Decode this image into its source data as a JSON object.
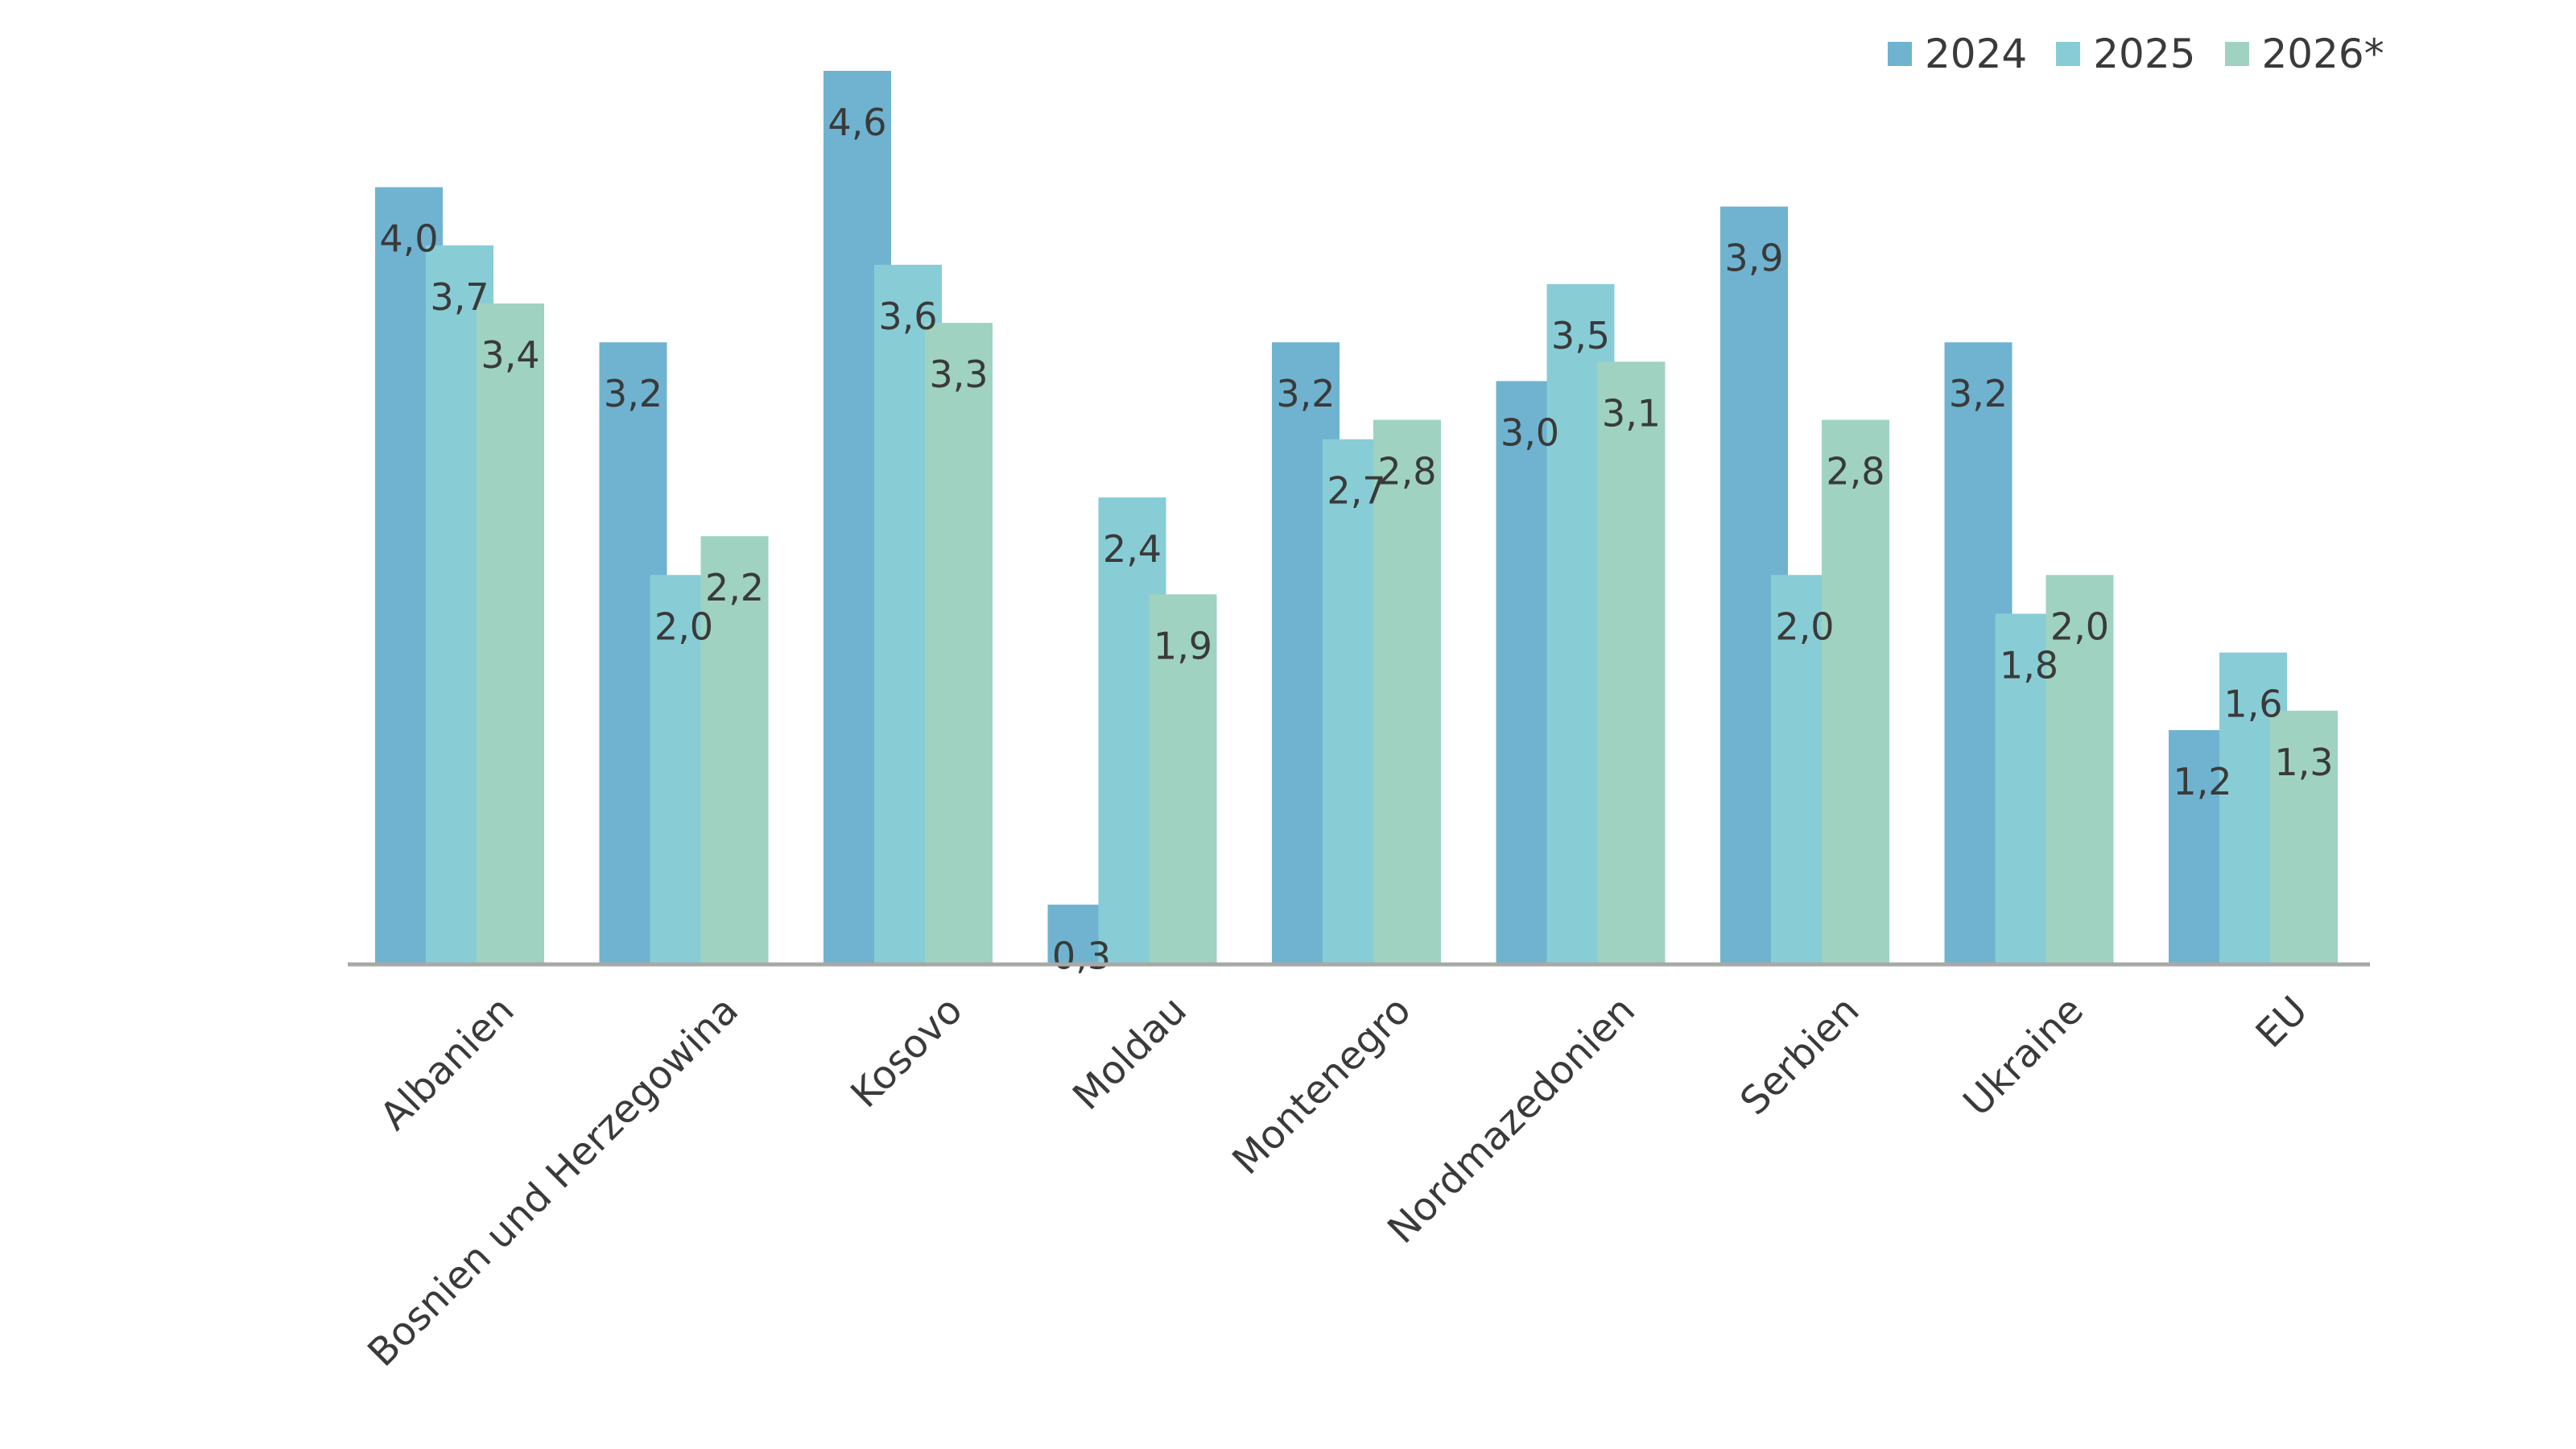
{
  "chart_data": {
    "type": "bar",
    "title": "",
    "xlabel": "",
    "ylabel": "",
    "ylim": [
      0,
      4.6
    ],
    "grid": false,
    "legend_placement": "top-right",
    "categories": [
      "Albanien",
      "Bosnien und Herzegowina",
      "Kosovo",
      "Moldau",
      "Montenegro",
      "Nordmazedonien",
      "Serbien",
      "Ukraine",
      "EU"
    ],
    "series": [
      {
        "name": "2024",
        "color": "#6fb3d0",
        "values": [
          4.0,
          3.2,
          4.6,
          0.3,
          3.2,
          3.0,
          3.9,
          3.2,
          1.2
        ],
        "labels": [
          "4,0",
          "3,2",
          "4,6",
          "0,3",
          "3,2",
          "3,0",
          "3,9",
          "3,2",
          "1,2"
        ]
      },
      {
        "name": "2025",
        "color": "#88cdd6",
        "values": [
          3.7,
          2.0,
          3.6,
          2.4,
          2.7,
          3.5,
          2.0,
          1.8,
          1.6
        ],
        "labels": [
          "3,7",
          "2,0",
          "3,6",
          "2,4",
          "2,7",
          "3,5",
          "2,0",
          "1,8",
          "1,6"
        ]
      },
      {
        "name": "2026*",
        "color": "#9fd2c1",
        "values": [
          3.4,
          2.2,
          3.3,
          1.9,
          2.8,
          3.1,
          2.8,
          2.0,
          1.3
        ],
        "labels": [
          "3,4",
          "2,2",
          "3,3",
          "1,9",
          "2,8",
          "3,1",
          "2,8",
          "2,0",
          "1,3"
        ]
      }
    ]
  }
}
